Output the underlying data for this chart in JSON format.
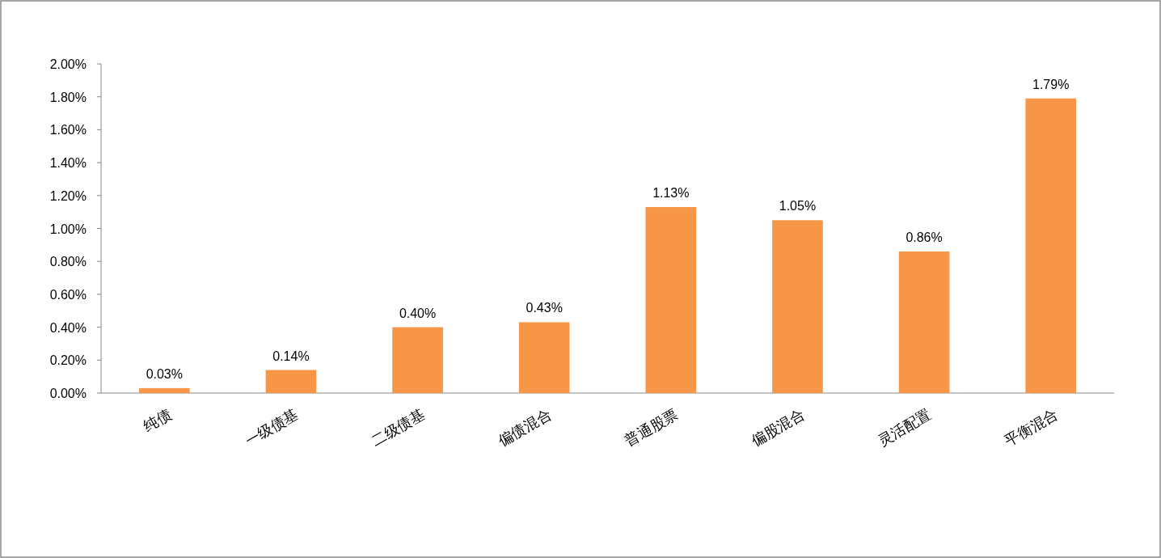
{
  "chart_data": {
    "type": "bar",
    "categories": [
      "纯债",
      "一级债基",
      "二级债基",
      "偏债混合",
      "普通股票",
      "偏股混合",
      "灵活配置",
      "平衡混合"
    ],
    "values": [
      0.03,
      0.14,
      0.4,
      0.43,
      1.13,
      1.05,
      0.86,
      1.79
    ],
    "value_labels": [
      "0.03%",
      "0.14%",
      "0.40%",
      "0.43%",
      "1.13%",
      "1.05%",
      "0.86%",
      "1.79%"
    ],
    "color": "#f79646",
    "ylim": [
      0,
      2
    ],
    "yticks": [
      {
        "value": 0,
        "label": "0.00%"
      },
      {
        "value": 0.2,
        "label": "0.20%"
      },
      {
        "value": 0.4,
        "label": "0.40%"
      },
      {
        "value": 0.6,
        "label": "0.60%"
      },
      {
        "value": 0.8,
        "label": "0.80%"
      },
      {
        "value": 1.0,
        "label": "1.00%"
      },
      {
        "value": 1.2,
        "label": "1.20%"
      },
      {
        "value": 1.4,
        "label": "1.40%"
      },
      {
        "value": 1.6,
        "label": "1.60%"
      },
      {
        "value": 1.8,
        "label": "1.80%"
      },
      {
        "value": 2.0,
        "label": "2.00%"
      }
    ]
  }
}
